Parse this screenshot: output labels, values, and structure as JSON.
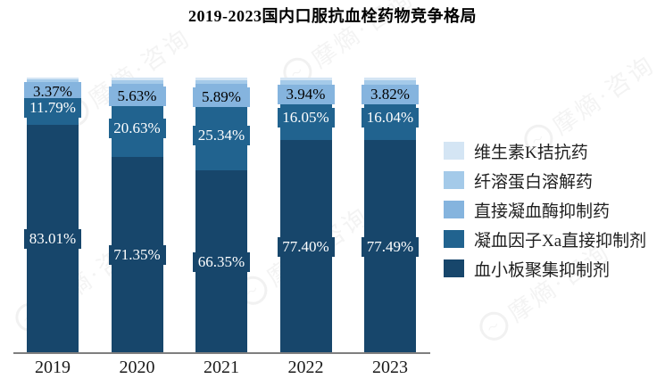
{
  "title": "2019-2023国内口服抗血栓药物竞争格局",
  "watermark": {
    "text": "摩熵·咨询"
  },
  "axis_line_color": "#7f7f7f",
  "chart_data": {
    "type": "bar",
    "stacked": true,
    "percent_stacked": true,
    "title": "2019-2023国内口服抗血栓药物竞争格局",
    "xlabel": "",
    "ylabel": "",
    "ylim": [
      0,
      100
    ],
    "grid": false,
    "legend_position": "right",
    "categories": [
      "2019",
      "2020",
      "2021",
      "2022",
      "2023"
    ],
    "series": [
      {
        "name": "维生素K拮抗药",
        "color": "#d4e5f4",
        "values": [
          0.73,
          0.96,
          0.97,
          1.04,
          1.06
        ],
        "estimated": true,
        "labels": [
          "",
          "",
          "",
          "",
          ""
        ]
      },
      {
        "name": "纤溶蛋白溶解药",
        "color": "#a4cae9",
        "values": [
          1.1,
          1.43,
          1.45,
          1.57,
          1.59
        ],
        "estimated": true,
        "labels": [
          "",
          "",
          "",
          "",
          ""
        ]
      },
      {
        "name": "直接凝血酶抑制药",
        "color": "#85b4de",
        "values": [
          3.37,
          5.63,
          5.89,
          3.94,
          3.82
        ],
        "estimated": false,
        "label_text_color": "#000000",
        "labels": [
          "3.37%",
          "5.63%",
          "5.89%",
          "3.94%",
          "3.82%"
        ]
      },
      {
        "name": "凝血因子Xa直接抑制剂",
        "color": "#21638f",
        "values": [
          11.79,
          20.63,
          25.34,
          16.05,
          16.04
        ],
        "estimated": false,
        "label_text_color": "#ffffff",
        "labels": [
          "11.79%",
          "20.63%",
          "25.34%",
          "16.05%",
          "16.04%"
        ]
      },
      {
        "name": "血小板聚集抑制剂",
        "color": "#17466b",
        "values": [
          83.01,
          71.35,
          66.35,
          77.4,
          77.49
        ],
        "estimated": false,
        "label_text_color": "#ffffff",
        "labels": [
          "83.01%",
          "71.35%",
          "66.35%",
          "77.40%",
          "77.49%"
        ]
      }
    ]
  }
}
